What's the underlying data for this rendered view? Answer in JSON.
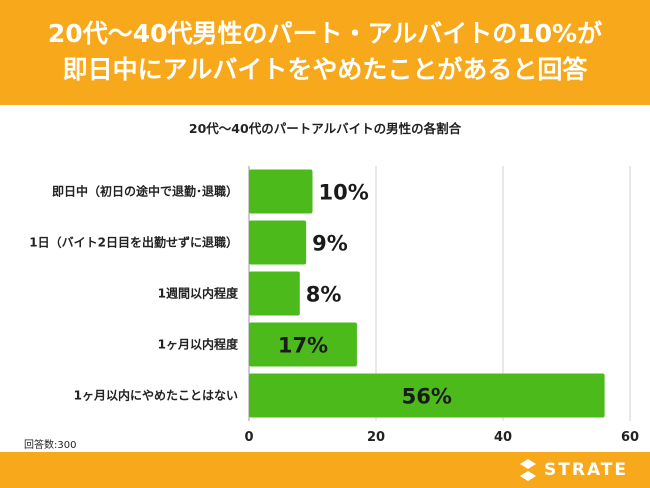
{
  "header": {
    "line1": "20代〜40代男性のパート・アルバイトの10%が",
    "line2": "即日中にアルバイトをやめたことがあると回答"
  },
  "footnote": "回答数:300",
  "logo": {
    "text": "STRATE"
  },
  "colors": {
    "bar": "#4dba1c",
    "accent": "#f7a91b",
    "grid": "#d0d0d0"
  },
  "chart_data": {
    "type": "bar",
    "orientation": "horizontal",
    "title": "20代〜40代のパートアルバイトの男性の各割合",
    "categories": [
      "即日中（初日の途中で退勤･退職）",
      "1日（バイト2日目を出勤せずに退職）",
      "1週間以内程度",
      "1ヶ月以内程度",
      "1ヶ月以内にやめたことはない"
    ],
    "values": [
      10,
      9,
      8,
      17,
      56
    ],
    "value_labels": [
      "10%",
      "9%",
      "8%",
      "17%",
      "56%"
    ],
    "xlim": [
      0,
      60
    ],
    "xticks": [
      0,
      20,
      40,
      60
    ],
    "grid": true,
    "legend": "none"
  }
}
